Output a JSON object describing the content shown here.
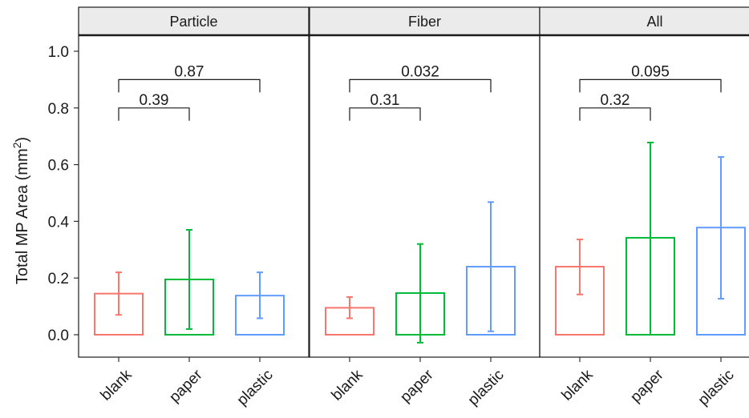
{
  "chart_data": {
    "type": "bar",
    "layout": "faceted",
    "ylabel": "Total MP Area (mm²)",
    "ylabel_main": "Total MP Area (mm",
    "ylabel_sup": "2",
    "ylabel_tail": ")",
    "ylim": [
      -0.05,
      1.05
    ],
    "yticks": [
      "0.0",
      "0.2",
      "0.4",
      "0.6",
      "0.8",
      "1.0"
    ],
    "yticks_values": [
      0.0,
      0.2,
      0.4,
      0.6,
      0.8,
      1.0
    ],
    "categories": [
      "blank",
      "paper",
      "plastic"
    ],
    "colors": {
      "blank": "#F8766D",
      "paper": "#00BA38",
      "plastic": "#619CFF"
    },
    "grid": false,
    "legend": "none",
    "facets": [
      {
        "title": "Particle",
        "means": [
          0.145,
          0.195,
          0.138
        ],
        "err_low": [
          0.07,
          0.02,
          0.058
        ],
        "err_high": [
          0.22,
          0.37,
          0.22
        ],
        "comparisons": [
          {
            "from": "blank",
            "to": "paper",
            "label": "0.39",
            "y": 0.8
          },
          {
            "from": "blank",
            "to": "plastic",
            "label": "0.87",
            "y": 0.9
          }
        ]
      },
      {
        "title": "Fiber",
        "means": [
          0.095,
          0.147,
          0.24
        ],
        "err_low": [
          0.058,
          -0.028,
          0.012
        ],
        "err_high": [
          0.133,
          0.32,
          0.468
        ],
        "comparisons": [
          {
            "from": "blank",
            "to": "paper",
            "label": "0.31",
            "y": 0.8
          },
          {
            "from": "blank",
            "to": "plastic",
            "label": "0.032",
            "y": 0.9
          }
        ]
      },
      {
        "title": "All",
        "means": [
          0.24,
          0.342,
          0.378
        ],
        "err_low": [
          0.142,
          0.0,
          0.127
        ],
        "err_high": [
          0.336,
          0.678,
          0.627
        ],
        "comparisons": [
          {
            "from": "blank",
            "to": "paper",
            "label": "0.32",
            "y": 0.8
          },
          {
            "from": "blank",
            "to": "plastic",
            "label": "0.095",
            "y": 0.9
          }
        ]
      }
    ]
  }
}
